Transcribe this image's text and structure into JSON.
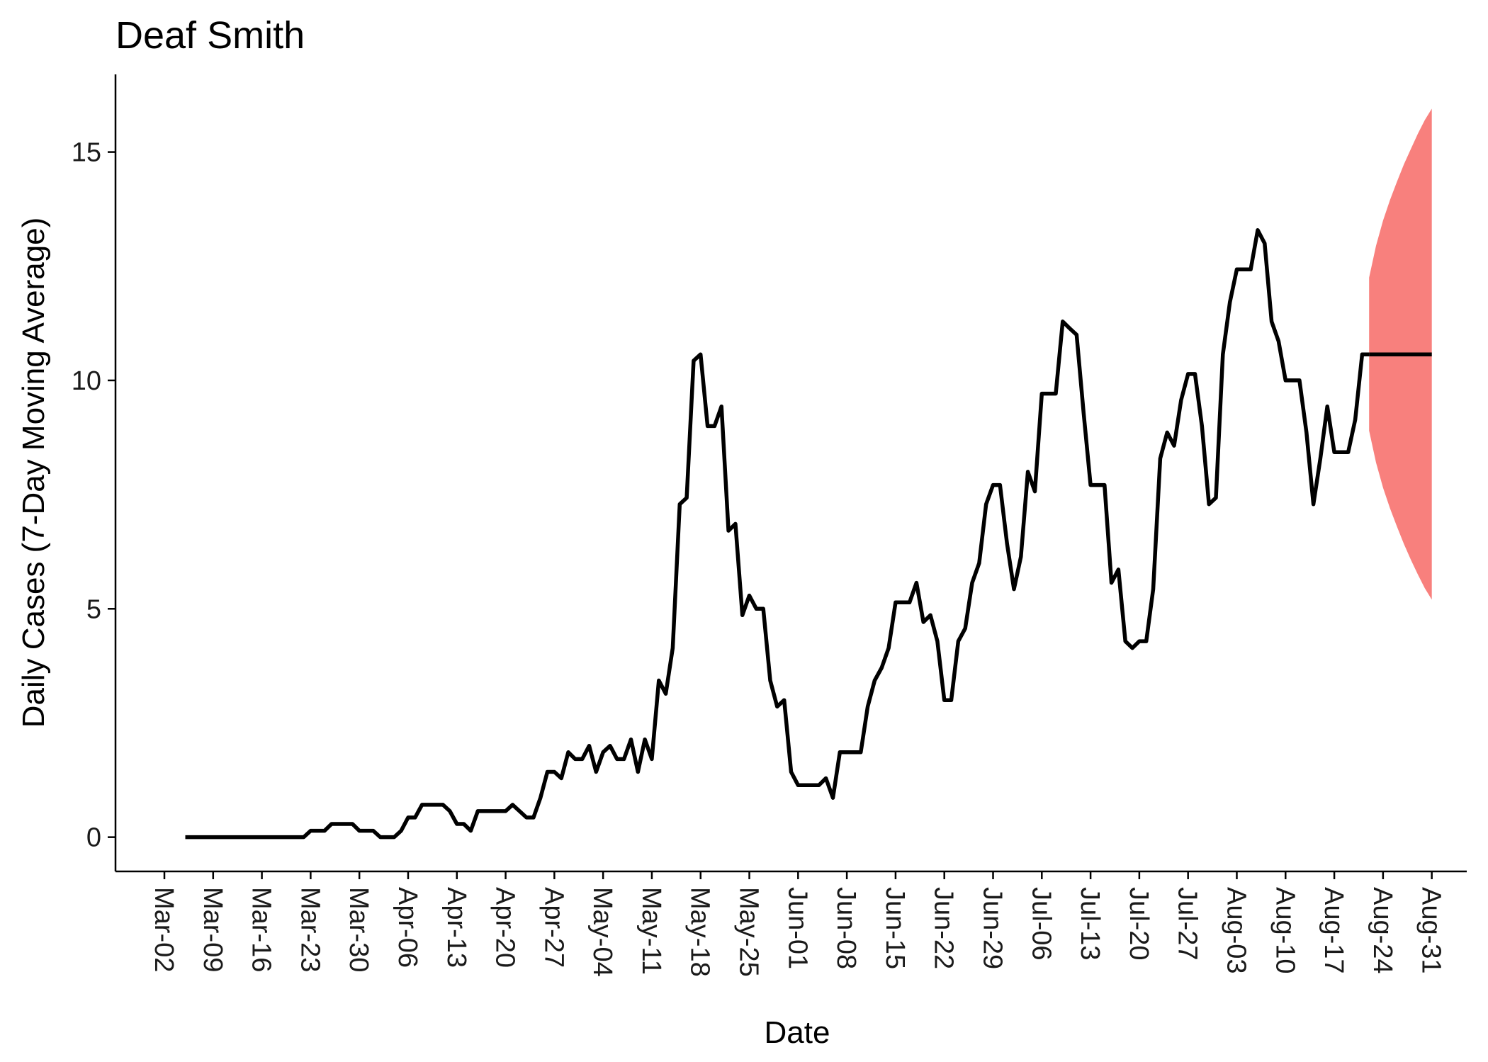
{
  "chart_data": {
    "type": "line",
    "title": "Deaf Smith",
    "xlabel": "Date",
    "ylabel": "Daily Cases (7-Day Moving Average)",
    "x_start": "Mar-02",
    "x_tick_labels": [
      "Mar-02",
      "Mar-09",
      "Mar-16",
      "Mar-23",
      "Mar-30",
      "Apr-06",
      "Apr-13",
      "Apr-20",
      "Apr-27",
      "May-04",
      "May-11",
      "May-18",
      "May-25",
      "Jun-01",
      "Jun-08",
      "Jun-15",
      "Jun-22",
      "Jun-29",
      "Jul-06",
      "Jul-13",
      "Jul-20",
      "Jul-27",
      "Aug-03",
      "Aug-10",
      "Aug-17",
      "Aug-24",
      "Aug-31"
    ],
    "y_ticks": [
      0,
      5,
      10,
      15
    ],
    "ylim": [
      -0.75,
      16.7
    ],
    "grid": false,
    "legend": "none",
    "series": [
      {
        "color": "#000000",
        "points": [
          [
            "Mar-05",
            0
          ],
          [
            "Mar-06",
            0
          ],
          [
            "Mar-07",
            0
          ],
          [
            "Mar-08",
            0
          ],
          [
            "Mar-09",
            0
          ],
          [
            "Mar-10",
            0
          ],
          [
            "Mar-11",
            0
          ],
          [
            "Mar-12",
            0
          ],
          [
            "Mar-13",
            0
          ],
          [
            "Mar-14",
            0
          ],
          [
            "Mar-15",
            0
          ],
          [
            "Mar-16",
            0
          ],
          [
            "Mar-17",
            0
          ],
          [
            "Mar-18",
            0
          ],
          [
            "Mar-19",
            0
          ],
          [
            "Mar-20",
            0
          ],
          [
            "Mar-21",
            0
          ],
          [
            "Mar-22",
            0
          ],
          [
            "Mar-23",
            0.14
          ],
          [
            "Mar-24",
            0.14
          ],
          [
            "Mar-25",
            0.14
          ],
          [
            "Mar-26",
            0.29
          ],
          [
            "Mar-27",
            0.29
          ],
          [
            "Mar-28",
            0.29
          ],
          [
            "Mar-29",
            0.29
          ],
          [
            "Mar-30",
            0.14
          ],
          [
            "Mar-31",
            0.14
          ],
          [
            "Apr-01",
            0.14
          ],
          [
            "Apr-02",
            0
          ],
          [
            "Apr-03",
            0
          ],
          [
            "Apr-04",
            0
          ],
          [
            "Apr-05",
            0.14
          ],
          [
            "Apr-06",
            0.43
          ],
          [
            "Apr-07",
            0.43
          ],
          [
            "Apr-08",
            0.71
          ],
          [
            "Apr-09",
            0.71
          ],
          [
            "Apr-10",
            0.71
          ],
          [
            "Apr-11",
            0.71
          ],
          [
            "Apr-12",
            0.57
          ],
          [
            "Apr-13",
            0.29
          ],
          [
            "Apr-14",
            0.29
          ],
          [
            "Apr-15",
            0.14
          ],
          [
            "Apr-16",
            0.57
          ],
          [
            "Apr-17",
            0.57
          ],
          [
            "Apr-18",
            0.57
          ],
          [
            "Apr-19",
            0.57
          ],
          [
            "Apr-20",
            0.57
          ],
          [
            "Apr-21",
            0.71
          ],
          [
            "Apr-22",
            0.57
          ],
          [
            "Apr-23",
            0.43
          ],
          [
            "Apr-24",
            0.43
          ],
          [
            "Apr-25",
            0.86
          ],
          [
            "Apr-26",
            1.43
          ],
          [
            "Apr-27",
            1.43
          ],
          [
            "Apr-28",
            1.29
          ],
          [
            "Apr-29",
            1.86
          ],
          [
            "Apr-30",
            1.71
          ],
          [
            "May-01",
            1.71
          ],
          [
            "May-02",
            2.0
          ],
          [
            "May-03",
            1.43
          ],
          [
            "May-04",
            1.86
          ],
          [
            "May-05",
            2.0
          ],
          [
            "May-06",
            1.71
          ],
          [
            "May-07",
            1.71
          ],
          [
            "May-08",
            2.14
          ],
          [
            "May-09",
            1.43
          ],
          [
            "May-10",
            2.14
          ],
          [
            "May-11",
            1.71
          ],
          [
            "May-12",
            3.43
          ],
          [
            "May-13",
            3.14
          ],
          [
            "May-14",
            4.14
          ],
          [
            "May-15",
            7.29
          ],
          [
            "May-16",
            7.43
          ],
          [
            "May-17",
            10.43
          ],
          [
            "May-18",
            10.57
          ],
          [
            "May-19",
            9.0
          ],
          [
            "May-20",
            9.0
          ],
          [
            "May-21",
            9.43
          ],
          [
            "May-22",
            6.71
          ],
          [
            "May-23",
            6.86
          ],
          [
            "May-24",
            4.86
          ],
          [
            "May-25",
            5.29
          ],
          [
            "May-26",
            5.0
          ],
          [
            "May-27",
            5.0
          ],
          [
            "May-28",
            3.43
          ],
          [
            "May-29",
            2.86
          ],
          [
            "May-30",
            3.0
          ],
          [
            "May-31",
            1.43
          ],
          [
            "Jun-01",
            1.14
          ],
          [
            "Jun-02",
            1.14
          ],
          [
            "Jun-03",
            1.14
          ],
          [
            "Jun-04",
            1.14
          ],
          [
            "Jun-05",
            1.29
          ],
          [
            "Jun-06",
            0.86
          ],
          [
            "Jun-07",
            1.86
          ],
          [
            "Jun-08",
            1.86
          ],
          [
            "Jun-09",
            1.86
          ],
          [
            "Jun-10",
            1.86
          ],
          [
            "Jun-11",
            2.86
          ],
          [
            "Jun-12",
            3.43
          ],
          [
            "Jun-13",
            3.71
          ],
          [
            "Jun-14",
            4.14
          ],
          [
            "Jun-15",
            5.14
          ],
          [
            "Jun-16",
            5.14
          ],
          [
            "Jun-17",
            5.14
          ],
          [
            "Jun-18",
            5.57
          ],
          [
            "Jun-19",
            4.71
          ],
          [
            "Jun-20",
            4.86
          ],
          [
            "Jun-21",
            4.29
          ],
          [
            "Jun-22",
            3.0
          ],
          [
            "Jun-23",
            3.0
          ],
          [
            "Jun-24",
            4.29
          ],
          [
            "Jun-25",
            4.57
          ],
          [
            "Jun-26",
            5.57
          ],
          [
            "Jun-27",
            6.0
          ],
          [
            "Jun-28",
            7.29
          ],
          [
            "Jun-29",
            7.71
          ],
          [
            "Jun-30",
            7.71
          ],
          [
            "Jul-01",
            6.43
          ],
          [
            "Jul-02",
            5.43
          ],
          [
            "Jul-03",
            6.14
          ],
          [
            "Jul-04",
            8.0
          ],
          [
            "Jul-05",
            7.57
          ],
          [
            "Jul-06",
            9.71
          ],
          [
            "Jul-07",
            9.71
          ],
          [
            "Jul-08",
            9.71
          ],
          [
            "Jul-09",
            11.29
          ],
          [
            "Jul-10",
            11.14
          ],
          [
            "Jul-11",
            11.0
          ],
          [
            "Jul-12",
            9.29
          ],
          [
            "Jul-13",
            7.71
          ],
          [
            "Jul-14",
            7.71
          ],
          [
            "Jul-15",
            7.71
          ],
          [
            "Jul-16",
            5.57
          ],
          [
            "Jul-17",
            5.86
          ],
          [
            "Jul-18",
            4.29
          ],
          [
            "Jul-19",
            4.14
          ],
          [
            "Jul-20",
            4.29
          ],
          [
            "Jul-21",
            4.29
          ],
          [
            "Jul-22",
            5.43
          ],
          [
            "Jul-23",
            8.29
          ],
          [
            "Jul-24",
            8.86
          ],
          [
            "Jul-25",
            8.57
          ],
          [
            "Jul-26",
            9.57
          ],
          [
            "Jul-27",
            10.14
          ],
          [
            "Jul-28",
            10.14
          ],
          [
            "Jul-29",
            9.0
          ],
          [
            "Jul-30",
            7.29
          ],
          [
            "Jul-31",
            7.43
          ],
          [
            "Aug-01",
            10.57
          ],
          [
            "Aug-02",
            11.71
          ],
          [
            "Aug-03",
            12.43
          ],
          [
            "Aug-04",
            12.43
          ],
          [
            "Aug-05",
            12.43
          ],
          [
            "Aug-06",
            13.29
          ],
          [
            "Aug-07",
            13.0
          ],
          [
            "Aug-08",
            11.29
          ],
          [
            "Aug-09",
            10.86
          ],
          [
            "Aug-10",
            10.0
          ],
          [
            "Aug-11",
            10.0
          ],
          [
            "Aug-12",
            10.0
          ],
          [
            "Aug-13",
            8.86
          ],
          [
            "Aug-14",
            7.29
          ],
          [
            "Aug-15",
            8.29
          ],
          [
            "Aug-16",
            9.43
          ],
          [
            "Aug-17",
            8.43
          ],
          [
            "Aug-18",
            8.43
          ],
          [
            "Aug-19",
            8.43
          ],
          [
            "Aug-20",
            9.14
          ],
          [
            "Aug-21",
            10.57
          ],
          [
            "Aug-22",
            10.57
          ]
        ]
      }
    ],
    "forecast": {
      "color": "#000000",
      "band_color": "#f8807d",
      "points": [
        [
          "Aug-22",
          10.57,
          8.9,
          12.25
        ],
        [
          "Aug-23",
          10.57,
          8.2,
          12.95
        ],
        [
          "Aug-24",
          10.57,
          7.65,
          13.5
        ],
        [
          "Aug-25",
          10.57,
          7.2,
          13.95
        ],
        [
          "Aug-26",
          10.57,
          6.8,
          14.35
        ],
        [
          "Aug-27",
          10.57,
          6.42,
          14.73
        ],
        [
          "Aug-28",
          10.57,
          6.07,
          15.07
        ],
        [
          "Aug-29",
          10.57,
          5.75,
          15.4
        ],
        [
          "Aug-30",
          10.57,
          5.45,
          15.7
        ],
        [
          "Aug-31",
          10.57,
          5.2,
          15.95
        ]
      ]
    }
  }
}
